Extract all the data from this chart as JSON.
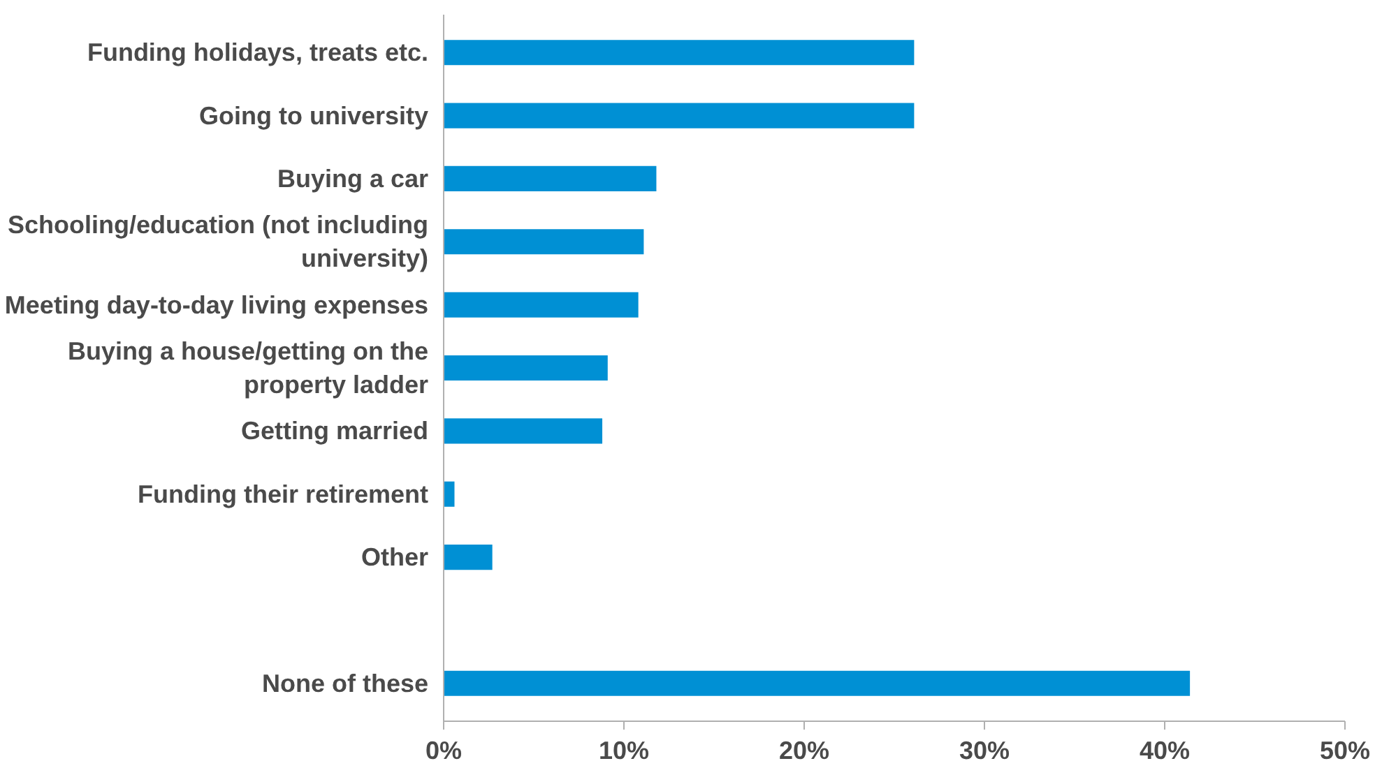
{
  "chart_data": {
    "type": "bar",
    "orientation": "horizontal",
    "categories": [
      "Funding holidays, treats etc.",
      "Going to university",
      "Buying a car",
      "Schooling/education (not including\nuniversity)",
      "Meeting day-to-day living expenses",
      "Buying a house/getting on the\nproperty ladder",
      "Getting married",
      "Funding their retirement",
      "Other",
      null,
      "None of these"
    ],
    "values": [
      26.1,
      26.1,
      11.8,
      11.1,
      10.8,
      9.1,
      8.8,
      0.6,
      2.7,
      null,
      41.4
    ],
    "color": "#0090d4",
    "xlim": [
      0,
      50
    ],
    "xticks": [
      {
        "value": 0,
        "label": "0%"
      },
      {
        "value": 10,
        "label": "10%"
      },
      {
        "value": 20,
        "label": "20%"
      },
      {
        "value": 30,
        "label": "30%"
      },
      {
        "value": 40,
        "label": "40%"
      },
      {
        "value": 50,
        "label": "50%"
      }
    ],
    "grid": false
  }
}
